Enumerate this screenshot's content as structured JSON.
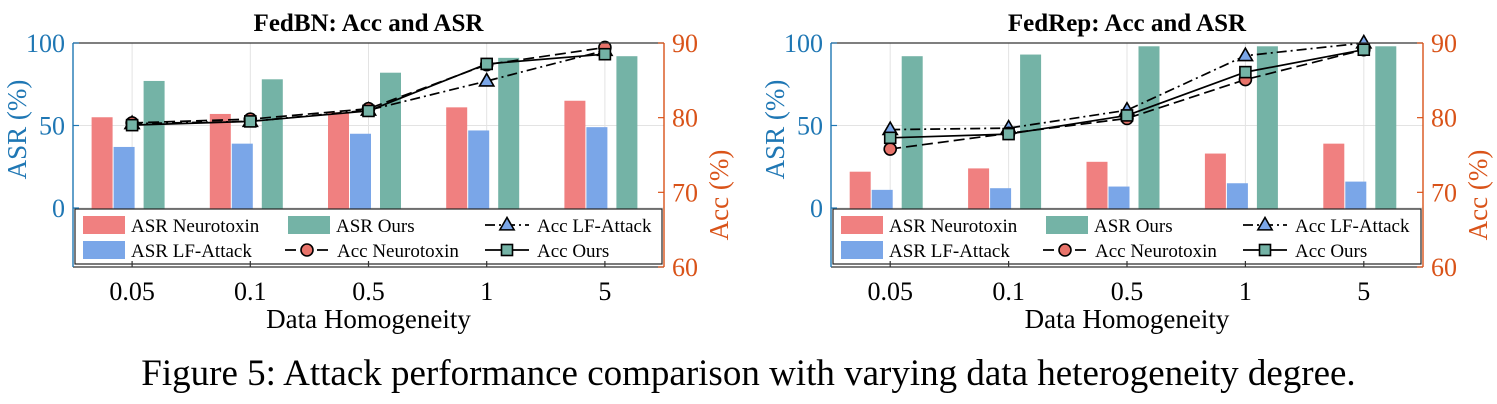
{
  "caption": "Figure 5: Attack performance comparison with varying data heterogeneity degree.",
  "colors": {
    "left_axis": "#1f77b4",
    "right_axis": "#d95319",
    "asr_neurotoxin": "#f08080",
    "asr_lf_attack": "#7aa6e8",
    "asr_ours": "#74b3a6",
    "acc_neurotoxin_marker": "#e8736a",
    "acc_lf_attack_marker": "#7aa6e8",
    "acc_ours_marker": "#74b3a6"
  },
  "legend": {
    "asr_neurotoxin": "ASR Neurotoxin",
    "asr_ours": "ASR Ours",
    "acc_lf_attack": "Acc LF-Attack",
    "asr_lf_attack": "ASR LF-Attack",
    "acc_neurotoxin": "Acc Neurotoxin",
    "acc_ours": "Acc Ours"
  },
  "chart_data": [
    {
      "type": "bar",
      "title": "FedBN: Acc and ASR",
      "xlabel": "Data Homogeneity",
      "ylabel_left": "ASR (%)",
      "ylabel_right": "Acc (%)",
      "categories": [
        "0.05",
        "0.1",
        "0.5",
        "1",
        "5"
      ],
      "ylim_left": [
        0,
        100
      ],
      "yticks_left": [
        0,
        50,
        100
      ],
      "ylim_right": [
        60,
        90
      ],
      "yticks_right": [
        60,
        70,
        80,
        90
      ],
      "grid": true,
      "legend_position": "bottom",
      "bar_series": [
        {
          "name": "ASR Neurotoxin",
          "values": [
            55,
            57,
            58,
            61,
            65
          ]
        },
        {
          "name": "ASR LF-Attack",
          "values": [
            37,
            39,
            45,
            47,
            49
          ]
        },
        {
          "name": "ASR Ours",
          "values": [
            77,
            78,
            82,
            91,
            92
          ]
        }
      ],
      "line_series": [
        {
          "name": "Acc LF-Attack",
          "values": [
            79.2,
            79.5,
            81.0,
            84.9,
            89.0
          ]
        },
        {
          "name": "Acc Neurotoxin",
          "values": [
            79.3,
            79.8,
            81.2,
            87.1,
            89.4
          ]
        },
        {
          "name": "Acc Ours",
          "values": [
            79.0,
            79.5,
            80.9,
            87.2,
            88.5
          ]
        }
      ]
    },
    {
      "type": "bar",
      "title": "FedRep: Acc and ASR",
      "xlabel": "Data Homogeneity",
      "ylabel_left": "ASR (%)",
      "ylabel_right": "Acc (%)",
      "categories": [
        "0.05",
        "0.1",
        "0.5",
        "1",
        "5"
      ],
      "ylim_left": [
        0,
        100
      ],
      "yticks_left": [
        0,
        50,
        100
      ],
      "ylim_right": [
        60,
        90
      ],
      "yticks_right": [
        60,
        70,
        80,
        90
      ],
      "grid": true,
      "legend_position": "bottom",
      "bar_series": [
        {
          "name": "ASR Neurotoxin",
          "values": [
            22,
            24,
            28,
            33,
            39
          ]
        },
        {
          "name": "ASR LF-Attack",
          "values": [
            11,
            12,
            13,
            15,
            16
          ]
        },
        {
          "name": "ASR Ours",
          "values": [
            92,
            93,
            98,
            98,
            98
          ]
        }
      ],
      "line_series": [
        {
          "name": "Acc LF-Attack",
          "values": [
            78.4,
            78.6,
            81.0,
            88.3,
            90.0
          ]
        },
        {
          "name": "Acc Neurotoxin",
          "values": [
            75.8,
            77.9,
            79.9,
            85.1,
            89.1
          ]
        },
        {
          "name": "Acc Ours",
          "values": [
            77.3,
            77.8,
            80.3,
            86.1,
            89.1
          ]
        }
      ]
    }
  ]
}
